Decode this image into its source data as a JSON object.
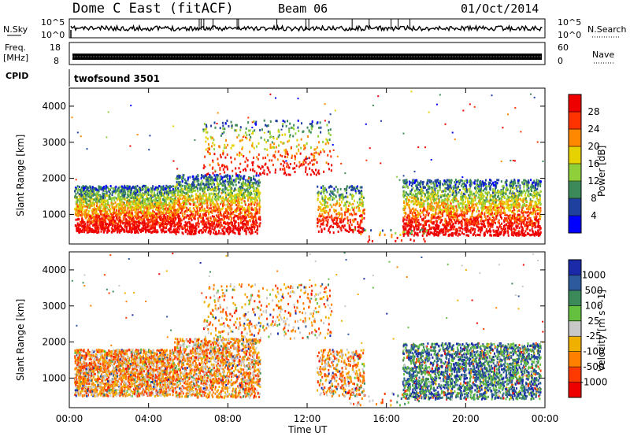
{
  "header": {
    "title": "Dome C East (fitACF)",
    "beam": "Beam 06",
    "date": "01/Oct/2014"
  },
  "noise_panel": {
    "left_label": "N.Sky",
    "right_label": "N.Search",
    "left_ticks": [
      "10^5",
      "10^0"
    ],
    "right_ticks": [
      "10^5",
      "10^0"
    ]
  },
  "freq_panel": {
    "left_label_1": "Freq.",
    "left_label_2": "[MHz]",
    "right_label": "Nave",
    "left_ticks": [
      "18",
      "8"
    ],
    "right_ticks": [
      "60",
      "0"
    ]
  },
  "cpid_panel": {
    "label": "CPID",
    "value": "twofsound 3501"
  },
  "chart_data": [
    {
      "type": "heatmap",
      "title": "",
      "quantity": "Power [dB]",
      "ylabel": "Slant Range [km]",
      "xlabel": "",
      "xlim": [
        "00:00",
        "24:00"
      ],
      "ylim": [
        180,
        4500
      ],
      "yticks": [
        "1000",
        "2000",
        "3000",
        "4000"
      ],
      "colorbar": {
        "label": "Power [dB]",
        "ticks": [
          "28",
          "24",
          "20",
          "16",
          "12",
          "8",
          "4"
        ],
        "colors": [
          "#0000ff",
          "#2040a0",
          "#3c8a5a",
          "#8fcf3a",
          "#e6d200",
          "#ff8800",
          "#ff3300",
          "#ee0000"
        ]
      }
    },
    {
      "type": "heatmap",
      "title": "",
      "quantity": "Velocity [m s^-1]",
      "ylabel": "Slant Range [km]",
      "xlabel": "Time UT",
      "xlim": [
        "00:00",
        "24:00"
      ],
      "ylim": [
        180,
        4500
      ],
      "yticks": [
        "1000",
        "2000",
        "3000",
        "4000"
      ],
      "xticks": [
        "00:00",
        "04:00",
        "08:00",
        "12:00",
        "16:00",
        "20:00",
        "00:00"
      ],
      "colorbar": {
        "label": "Velocity [m s^-1]",
        "ticks": [
          "1000",
          "500",
          "100",
          "25",
          "-25",
          "-100",
          "-500",
          "-1000"
        ],
        "colors": [
          "#1a2aa8",
          "#2c5a9c",
          "#3c8a5a",
          "#66c040",
          "#c8c8c8",
          "#f0b000",
          "#ff8000",
          "#ff3a00",
          "#ee0000"
        ]
      }
    }
  ],
  "x_axis": {
    "label": "Time UT",
    "ticks": [
      "00:00",
      "04:00",
      "08:00",
      "12:00",
      "16:00",
      "20:00",
      "00:00"
    ]
  },
  "y_axis": {
    "label": "Slant Range [km]",
    "ticks": [
      "1000",
      "2000",
      "3000",
      "4000"
    ]
  },
  "power_colorbar": {
    "label": "Power [dB]",
    "ticks": [
      "28",
      "24",
      "20",
      "16",
      "12",
      "8",
      "4"
    ]
  },
  "velocity_colorbar": {
    "label": "Velocity [m s^-1]",
    "ticks": [
      "1000",
      "500",
      "100",
      "25",
      "-25",
      "-100",
      "-500",
      "-1000"
    ]
  }
}
